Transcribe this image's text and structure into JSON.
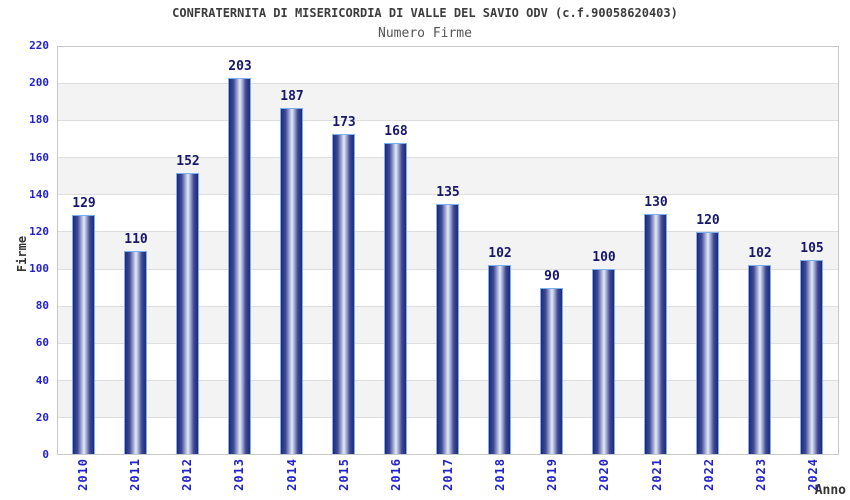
{
  "chart_data": {
    "type": "bar",
    "title": "CONFRATERNITA DI MISERICORDIA DI VALLE DEL SAVIO ODV (c.f.90058620403)",
    "subtitle": "Numero Firme",
    "xlabel": "Anno",
    "ylabel": "Firme",
    "categories": [
      "2010",
      "2011",
      "2012",
      "2013",
      "2014",
      "2015",
      "2016",
      "2017",
      "2018",
      "2019",
      "2020",
      "2021",
      "2022",
      "2023",
      "2024"
    ],
    "values": [
      129,
      110,
      152,
      203,
      187,
      173,
      168,
      135,
      102,
      90,
      100,
      130,
      120,
      102,
      105
    ],
    "ylim": [
      0,
      220
    ],
    "ytick_step": 20,
    "yticks": [
      0,
      20,
      40,
      60,
      80,
      100,
      120,
      140,
      160,
      180,
      200,
      220
    ],
    "grid": "alternating-horizontal-bands",
    "legend_position": "none",
    "bar_label_position": "above",
    "colors": {
      "bar_edge_dark": "#1f2979",
      "bar_mid": "#3e4a96",
      "bar_center_light": "#e6e9f5",
      "bar_border": "#7ab0f0",
      "value_label": "#16166b",
      "axis_tick_text": "#2222cc",
      "band_gray": "#f3f3f3",
      "band_white": "#ffffff",
      "gridline": "#dddddd",
      "plot_border": "#c9c9c9",
      "title_text": "#3c3c3c",
      "subtitle_text": "#555555",
      "axis_title_text": "#333333"
    }
  }
}
